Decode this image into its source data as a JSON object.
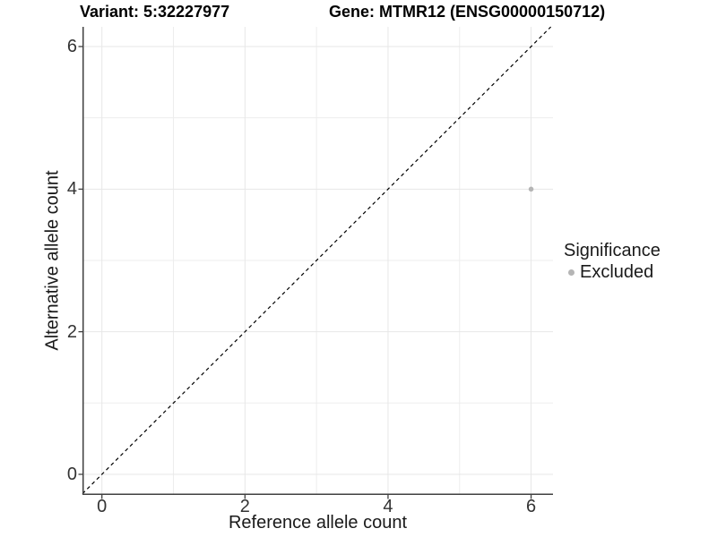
{
  "header": {
    "variant_title": "Variant: 5:32227977",
    "gene_title": "Gene: MTMR12 (ENSG00000150712)"
  },
  "chart_data": {
    "type": "scatter",
    "xlabel": "Reference allele count",
    "ylabel": "Alternative allele count",
    "xlim": [
      -0.272,
      6.306
    ],
    "ylim": [
      -0.289,
      6.276
    ],
    "x_ticks": [
      0,
      2,
      4,
      6
    ],
    "y_ticks": [
      0,
      2,
      4,
      6
    ],
    "minor_grid_x": [
      1,
      3,
      5
    ],
    "minor_grid_y": [
      1,
      3,
      5
    ],
    "grid": "on",
    "points": [
      {
        "x": 6,
        "y": 4,
        "series": "Excluded"
      }
    ],
    "reference_line": {
      "kind": "identity",
      "slope": 1,
      "intercept": 0,
      "style": "dashed"
    },
    "legend": {
      "title": "Significance",
      "position": "right",
      "items": [
        {
          "label": "Excluded",
          "color": "#b5b5b5"
        }
      ]
    }
  },
  "colors": {
    "background": "#ffffff",
    "grid_major": "#e7e7e7",
    "grid_minor": "#ededed",
    "axis_line": "#404040",
    "tick_mark": "#404040",
    "tick_label": "#333333",
    "axis_title": "#1a1a1a",
    "plot_title": "#000000",
    "point": "#b5b5b5",
    "reference_line": "#000000"
  }
}
